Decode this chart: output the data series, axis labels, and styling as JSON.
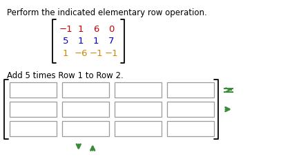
{
  "title": "Perform the indicated elementary row operation.",
  "matrix": [
    [
      -1,
      1,
      6,
      0
    ],
    [
      5,
      1,
      1,
      7
    ],
    [
      1,
      -6,
      -1,
      -1
    ]
  ],
  "instruction": "Add 5 times Row 1 to Row 2.",
  "bg_color": "#ffffff",
  "text_color": "#000000",
  "matrix_row_colors": [
    "#cc0000",
    "#0000cc",
    "#cc8800"
  ],
  "bracket_color": "#000000",
  "box_edge_color": "#999999",
  "arrow_color": "#3a8c3a",
  "title_fontsize": 8.5,
  "matrix_fontsize": 9.5,
  "instruction_fontsize": 8.5,
  "n_rows": 3,
  "n_cols": 4
}
